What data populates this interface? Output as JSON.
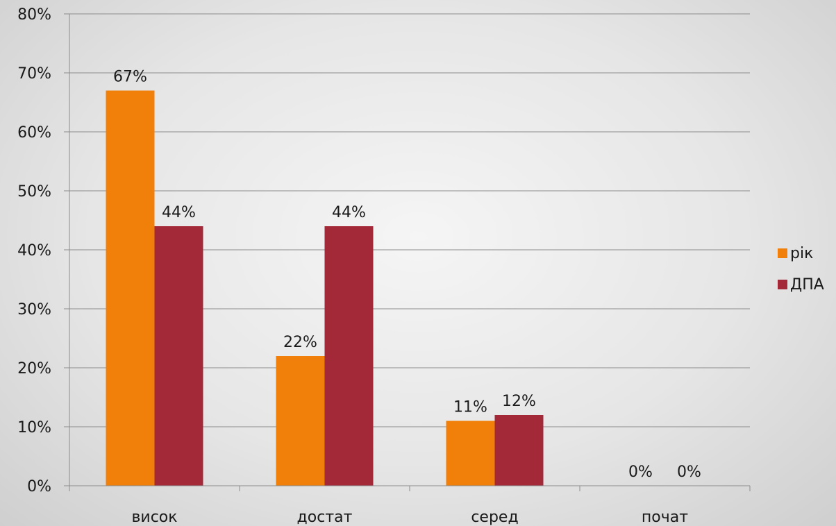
{
  "chart_data": {
    "type": "bar",
    "categories": [
      "висок",
      "достат",
      "серед",
      "почат"
    ],
    "series": [
      {
        "name": "рік",
        "values": [
          67,
          22,
          11,
          0
        ],
        "color": "#f0800a"
      },
      {
        "name": "ДПА",
        "values": [
          44,
          44,
          12,
          0
        ],
        "color": "#a32838"
      }
    ],
    "ylim": [
      0,
      80
    ],
    "yticks": [
      "0%",
      "10%",
      "20%",
      "30%",
      "40%",
      "50%",
      "60%",
      "70%",
      "80%"
    ],
    "value_suffix": "%",
    "grid": true,
    "legend_position": "right",
    "title": "",
    "xlabel": "",
    "ylabel": ""
  }
}
